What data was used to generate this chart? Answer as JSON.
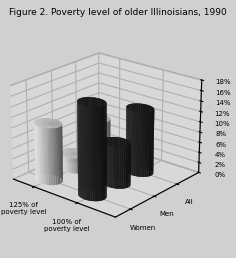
{
  "title": "Figure 2. Poverty level of older Illinoisians, 1990",
  "row_labels": [
    "All",
    "Men",
    "Women"
  ],
  "col_labels": [
    "125% of\npoverty level",
    "100% of\npoverty level"
  ],
  "values": [
    [
      8.0,
      12.5
    ],
    [
      3.0,
      8.0
    ],
    [
      11.0,
      17.5
    ]
  ],
  "bar_colors": [
    "#e8e8e8",
    "#2a2a2a"
  ],
  "top_colors": [
    "#c0c0c0",
    "#1a1a1a"
  ],
  "yticks": [
    0,
    2,
    4,
    6,
    8,
    10,
    12,
    14,
    16,
    18
  ],
  "ytick_labels": [
    "0%",
    "2%",
    "4%",
    "6%",
    "8%",
    "10%",
    "12%",
    "14%",
    "16%",
    "18%"
  ],
  "background_color": "#d0d0d0",
  "pane_color": "#e0e0e0",
  "title_fontsize": 6.5,
  "tick_fontsize": 5.0,
  "label_fontsize": 5.0,
  "elev": 22,
  "azim": -50
}
